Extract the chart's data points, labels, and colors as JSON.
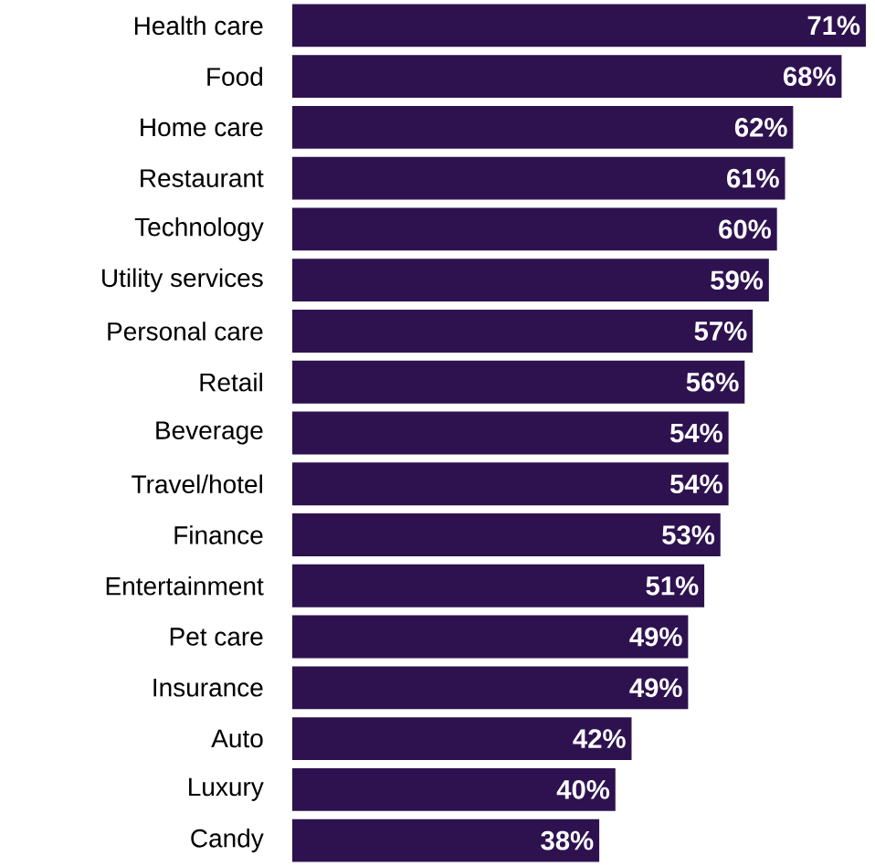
{
  "chart_data": {
    "type": "bar",
    "orientation": "horizontal",
    "color": "#2e1250",
    "categories": [
      "Health care",
      "Food",
      "Home care",
      "Restaurant",
      "Technology",
      "Utility services",
      "Personal care",
      "Retail",
      "Beverage",
      "Travel/hotel",
      "Finance",
      "Entertainment",
      "Pet care",
      "Insurance",
      "Auto",
      "Luxury",
      "Candy"
    ],
    "values": [
      71,
      68,
      62,
      61,
      60,
      59,
      57,
      56,
      54,
      54,
      53,
      51,
      49,
      49,
      42,
      40,
      38
    ],
    "value_labels": [
      "71%",
      "68%",
      "62%",
      "61%",
      "60%",
      "59%",
      "57%",
      "56%",
      "54%",
      "54%",
      "53%",
      "51%",
      "49%",
      "49%",
      "42%",
      "40%",
      "38%"
    ],
    "tick_labels": "y"
  }
}
